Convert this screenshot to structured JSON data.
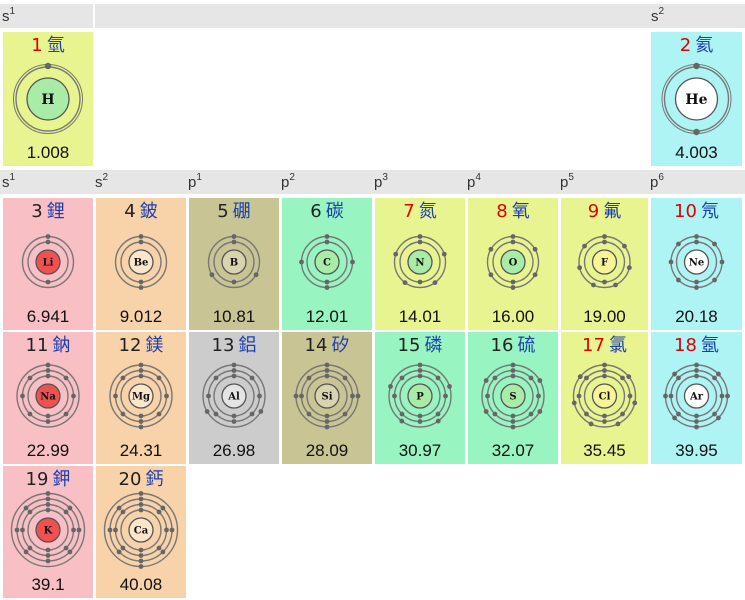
{
  "headers": {
    "top_left": {
      "letter": "s",
      "sup": "1"
    },
    "top_right": {
      "letter": "s",
      "sup": "2"
    },
    "row": [
      {
        "letter": "s",
        "sup": "1"
      },
      {
        "letter": "s",
        "sup": "2"
      },
      {
        "letter": "p",
        "sup": "1"
      },
      {
        "letter": "p",
        "sup": "2"
      },
      {
        "letter": "p",
        "sup": "3"
      },
      {
        "letter": "p",
        "sup": "4"
      },
      {
        "letter": "p",
        "sup": "5"
      },
      {
        "letter": "p",
        "sup": "6"
      }
    ]
  },
  "elements": [
    {
      "number": "1",
      "name": "氫",
      "symbol": "H",
      "mass": "1.008",
      "shells": [
        1
      ],
      "bg": "#e8f490",
      "nucleus": "#a8eca8",
      "number_color": "#e00000",
      "big": true
    },
    {
      "number": "2",
      "name": "氦",
      "symbol": "He",
      "mass": "4.003",
      "shells": [
        2
      ],
      "bg": "#aef4f4",
      "nucleus": "#ffffff",
      "number_color": "#e00000",
      "big": true
    },
    {
      "number": "3",
      "name": "鋰",
      "symbol": "Li",
      "mass": "6.941",
      "shells": [
        2,
        1
      ],
      "bg": "#f8c0c4",
      "nucleus": "#f05050",
      "number_color": "#222222"
    },
    {
      "number": "4",
      "name": "鈹",
      "symbol": "Be",
      "mass": "9.012",
      "shells": [
        2,
        2
      ],
      "bg": "#f8d2a8",
      "nucleus": "#fbe6cc",
      "number_color": "#222222"
    },
    {
      "number": "5",
      "name": "硼",
      "symbol": "B",
      "mass": "10.81",
      "shells": [
        2,
        3
      ],
      "bg": "#c8c494",
      "nucleus": "#d8d4b0",
      "number_color": "#222222"
    },
    {
      "number": "6",
      "name": "碳",
      "symbol": "C",
      "mass": "12.01",
      "shells": [
        2,
        4
      ],
      "bg": "#98f4c0",
      "nucleus": "#a8eca8",
      "number_color": "#222222"
    },
    {
      "number": "7",
      "name": "氮",
      "symbol": "N",
      "mass": "14.01",
      "shells": [
        2,
        5
      ],
      "bg": "#e8f490",
      "nucleus": "#a8eca8",
      "number_color": "#e00000"
    },
    {
      "number": "8",
      "name": "氧",
      "symbol": "O",
      "mass": "16.00",
      "shells": [
        2,
        6
      ],
      "bg": "#e8f490",
      "nucleus": "#a8eca8",
      "number_color": "#e00000"
    },
    {
      "number": "9",
      "name": "氟",
      "symbol": "F",
      "mass": "19.00",
      "shells": [
        2,
        7
      ],
      "bg": "#e8f490",
      "nucleus": "#f8f498",
      "number_color": "#e00000"
    },
    {
      "number": "10",
      "name": "氖",
      "symbol": "Ne",
      "mass": "20.18",
      "shells": [
        2,
        8
      ],
      "bg": "#aef4f4",
      "nucleus": "#ffffff",
      "number_color": "#e00000"
    },
    {
      "number": "11",
      "name": "鈉",
      "symbol": "Na",
      "mass": "22.99",
      "shells": [
        2,
        8,
        1
      ],
      "bg": "#f8c0c4",
      "nucleus": "#f05050",
      "number_color": "#222222"
    },
    {
      "number": "12",
      "name": "鎂",
      "symbol": "Mg",
      "mass": "24.31",
      "shells": [
        2,
        8,
        2
      ],
      "bg": "#f8d2a8",
      "nucleus": "#fbe6cc",
      "number_color": "#222222"
    },
    {
      "number": "13",
      "name": "鋁",
      "symbol": "Al",
      "mass": "26.98",
      "shells": [
        2,
        8,
        3
      ],
      "bg": "#cccccc",
      "nucleus": "#e4e4e4",
      "number_color": "#222222"
    },
    {
      "number": "14",
      "name": "矽",
      "symbol": "Si",
      "mass": "28.09",
      "shells": [
        2,
        8,
        4
      ],
      "bg": "#c8c494",
      "nucleus": "#d8d4b0",
      "number_color": "#222222"
    },
    {
      "number": "15",
      "name": "磷",
      "symbol": "P",
      "mass": "30.97",
      "shells": [
        2,
        8,
        5
      ],
      "bg": "#98f4c0",
      "nucleus": "#a8eca8",
      "number_color": "#222222"
    },
    {
      "number": "16",
      "name": "硫",
      "symbol": "S",
      "mass": "32.07",
      "shells": [
        2,
        8,
        6
      ],
      "bg": "#98f4c0",
      "nucleus": "#a8eca8",
      "number_color": "#222222"
    },
    {
      "number": "17",
      "name": "氯",
      "symbol": "Cl",
      "mass": "35.45",
      "shells": [
        2,
        8,
        7
      ],
      "bg": "#e8f490",
      "nucleus": "#f8f498",
      "number_color": "#e00000"
    },
    {
      "number": "18",
      "name": "氬",
      "symbol": "Ar",
      "mass": "39.95",
      "shells": [
        2,
        8,
        8
      ],
      "bg": "#aef4f4",
      "nucleus": "#ffffff",
      "number_color": "#e00000"
    },
    {
      "number": "19",
      "name": "鉀",
      "symbol": "K",
      "mass": "39.1",
      "shells": [
        2,
        8,
        8,
        1
      ],
      "bg": "#f8c0c4",
      "nucleus": "#f05050",
      "number_color": "#222222"
    },
    {
      "number": "20",
      "name": "鈣",
      "symbol": "Ca",
      "mass": "40.08",
      "shells": [
        2,
        8,
        8,
        2
      ],
      "bg": "#f8d2a8",
      "nucleus": "#fbe6cc",
      "number_color": "#222222"
    }
  ]
}
